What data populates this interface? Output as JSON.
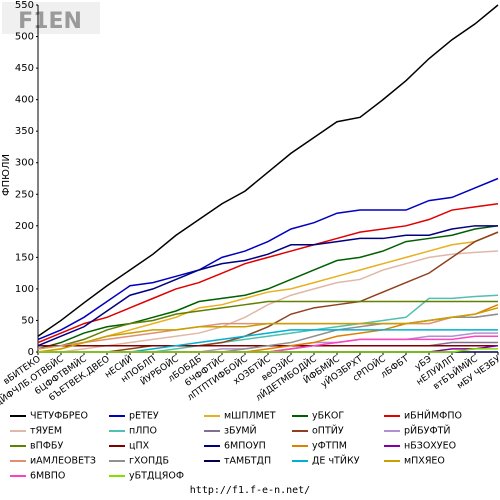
{
  "chart_data": {
    "type": "line",
    "logo": "F1EN",
    "y_label": "ФПЮЛИ",
    "source": "http://f1.f-e-n.net/",
    "categories": [
      "вБИТЕКО",
      "дЙФЧЛБ.ОТВБЙС",
      "6ЦФФТВМЙС",
      "6ЪЕТВЕК.ДВЕО",
      "нЕСИЙ",
      "нПОБЛП",
      "ЙУРБОЙС",
      "лБОБДБ",
      "6ЧФФТЙС",
      "лПТПТИФБОЙС",
      "хОЗБТЙС",
      "веО3ЙС",
      "лЙДЕТМБОДЙС",
      "ЙФБМЙС",
      "уЙОЗБРХТ",
      "сРПОЙС",
      "лБФБТ",
      "уБЭ",
      "нЕЛУЙЛП",
      "втБЪЙМЙС",
      "мБУ ЧЕЗБУ"
    ],
    "ylim": [
      0,
      550
    ],
    "yticks": [
      0,
      50,
      100,
      150,
      200,
      250,
      300,
      350,
      400,
      450,
      500,
      550
    ],
    "series": [
      {
        "name": "ЧЕТУФБРЕО",
        "color": "#000000",
        "values": [
          25,
          50,
          78,
          105,
          130,
          155,
          185,
          210,
          235,
          255,
          285,
          315,
          340,
          365,
          372,
          400,
          430,
          465,
          495,
          520,
          550
        ]
      },
      {
        "name": "рЕТЕУ",
        "color": "#0000c0",
        "values": [
          20,
          35,
          55,
          80,
          105,
          110,
          120,
          130,
          150,
          160,
          175,
          195,
          205,
          220,
          225,
          225,
          225,
          240,
          245,
          260,
          275
        ]
      },
      {
        "name": "мШПЛМЕТ",
        "color": "#e8b020",
        "values": [
          0,
          5,
          15,
          25,
          35,
          45,
          55,
          70,
          75,
          85,
          95,
          100,
          110,
          120,
          130,
          140,
          150,
          160,
          170,
          175,
          190
        ]
      },
      {
        "name": "уБКОГ",
        "color": "#006000",
        "values": [
          5,
          15,
          30,
          40,
          45,
          55,
          65,
          80,
          85,
          90,
          100,
          115,
          130,
          145,
          150,
          160,
          175,
          180,
          185,
          195,
          200
        ]
      },
      {
        "name": "иБНЙМФПО",
        "color": "#e00000",
        "values": [
          15,
          30,
          45,
          55,
          70,
          85,
          100,
          110,
          125,
          140,
          150,
          160,
          170,
          180,
          190,
          195,
          200,
          210,
          225,
          230,
          235
        ]
      },
      {
        "name": "тЯУЕМ",
        "color": "#e0b8a8",
        "values": [
          0,
          0,
          5,
          10,
          15,
          20,
          25,
          30,
          40,
          55,
          75,
          90,
          100,
          110,
          115,
          130,
          140,
          150,
          155,
          158,
          160
        ]
      },
      {
        "name": "пЛПО",
        "color": "#50c0b0",
        "values": [
          0,
          0,
          0,
          0,
          0,
          0,
          5,
          10,
          15,
          20,
          25,
          30,
          35,
          40,
          45,
          50,
          55,
          85,
          85,
          88,
          90
        ]
      },
      {
        "name": "зБУМЙ",
        "color": "#807090",
        "values": [
          0,
          0,
          0,
          0,
          0,
          0,
          0,
          0,
          0,
          0,
          0,
          5,
          10,
          10,
          10,
          10,
          10,
          10,
          15,
          15,
          15
        ]
      },
      {
        "name": "оПТЙУ",
        "color": "#904020",
        "values": [
          0,
          0,
          0,
          0,
          5,
          10,
          10,
          10,
          15,
          25,
          40,
          60,
          70,
          75,
          80,
          95,
          110,
          125,
          150,
          175,
          190
        ]
      },
      {
        "name": "рЙБУФТЙ",
        "color": "#b090d0",
        "values": [
          0,
          0,
          0,
          0,
          0,
          0,
          0,
          0,
          5,
          5,
          10,
          10,
          15,
          15,
          20,
          20,
          20,
          25,
          25,
          30,
          30
        ]
      },
      {
        "name": "вПФБУ",
        "color": "#608000",
        "values": [
          5,
          10,
          20,
          35,
          45,
          50,
          60,
          65,
          70,
          75,
          80,
          80,
          80,
          80,
          80,
          80,
          80,
          80,
          80,
          80,
          80
        ]
      },
      {
        "name": "цПХ",
        "color": "#800000",
        "values": [
          10,
          10,
          10,
          10,
          10,
          10,
          10,
          10,
          10,
          10,
          10,
          10,
          10,
          10,
          10,
          10,
          10,
          10,
          10,
          10,
          10
        ]
      },
      {
        "name": "6МПОУП",
        "color": "#000080",
        "values": [
          10,
          25,
          40,
          65,
          90,
          100,
          115,
          130,
          140,
          145,
          155,
          170,
          170,
          175,
          180,
          180,
          185,
          185,
          195,
          200,
          200
        ]
      },
      {
        "name": "уФТПМ",
        "color": "#e08000",
        "values": [
          0,
          0,
          0,
          0,
          0,
          0,
          0,
          0,
          0,
          0,
          5,
          10,
          15,
          25,
          30,
          35,
          45,
          50,
          55,
          60,
          75
        ]
      },
      {
        "name": "нБЗОХУЕО",
        "color": "#8000a0",
        "values": [
          0,
          0,
          0,
          0,
          0,
          0,
          0,
          0,
          0,
          0,
          0,
          0,
          0,
          0,
          0,
          0,
          0,
          0,
          5,
          5,
          10
        ]
      },
      {
        "name": "иАМЛЕОВЕТЗ",
        "color": "#e09070",
        "values": [
          5,
          10,
          15,
          20,
          25,
          30,
          35,
          40,
          45,
          45,
          45,
          45,
          45,
          45,
          45,
          45,
          45,
          45,
          55,
          55,
          60
        ]
      },
      {
        "name": "гХОПДБ",
        "color": "#909090",
        "values": [
          0,
          0,
          0,
          0,
          0,
          0,
          0,
          0,
          0,
          5,
          10,
          15,
          25,
          35,
          40,
          45,
          45,
          50,
          55,
          55,
          60
        ]
      },
      {
        "name": "тАМБТДП",
        "color": "#000050",
        "values": [
          0,
          0,
          0,
          0,
          0,
          0,
          0,
          0,
          0,
          0,
          0,
          0,
          0,
          0,
          0,
          0,
          0,
          0,
          0,
          0,
          0
        ]
      },
      {
        "name": "ДЕ чТЙКУ",
        "color": "#00b0d0",
        "values": [
          0,
          0,
          0,
          0,
          0,
          5,
          10,
          15,
          20,
          25,
          30,
          35,
          35,
          35,
          35,
          35,
          35,
          35,
          35,
          35,
          35
        ]
      },
      {
        "name": "мПХЯЕО",
        "color": "#c8a000",
        "values": [
          0,
          5,
          15,
          25,
          30,
          35,
          35,
          40,
          40,
          40,
          45,
          45,
          45,
          45,
          45,
          45,
          45,
          50,
          55,
          60,
          70
        ]
      },
      {
        "name": "6МВПО",
        "color": "#ff40c0",
        "values": [
          0,
          0,
          0,
          0,
          0,
          0,
          0,
          0,
          0,
          0,
          0,
          5,
          10,
          15,
          20,
          20,
          20,
          20,
          20,
          25,
          25
        ]
      },
      {
        "name": "уБТДЦЯОФ",
        "color": "#80e000",
        "values": [
          0,
          0,
          0,
          0,
          0,
          0,
          0,
          0,
          0,
          0,
          0,
          0,
          0,
          0,
          0,
          0,
          0,
          0,
          0,
          5,
          5
        ]
      }
    ]
  }
}
